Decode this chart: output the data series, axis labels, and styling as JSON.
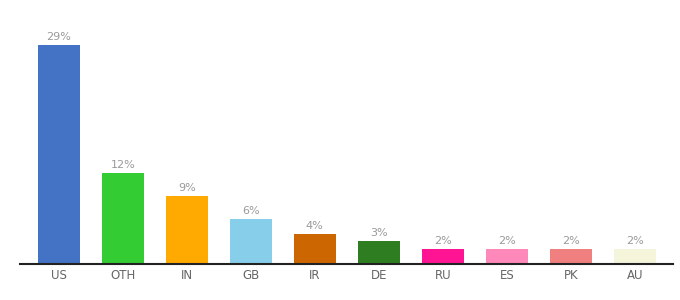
{
  "categories": [
    "US",
    "OTH",
    "IN",
    "GB",
    "IR",
    "DE",
    "RU",
    "ES",
    "PK",
    "AU"
  ],
  "values": [
    29,
    12,
    9,
    6,
    4,
    3,
    2,
    2,
    2,
    2
  ],
  "bar_colors": [
    "#4472c4",
    "#33cc33",
    "#ffaa00",
    "#87ceeb",
    "#cc6600",
    "#2e7d20",
    "#ff1493",
    "#ff88bb",
    "#f08080",
    "#f5f5dc"
  ],
  "label_color": "#999999",
  "ylim": [
    0,
    33
  ],
  "figsize": [
    6.8,
    3.0
  ],
  "dpi": 100,
  "bar_width": 0.65
}
